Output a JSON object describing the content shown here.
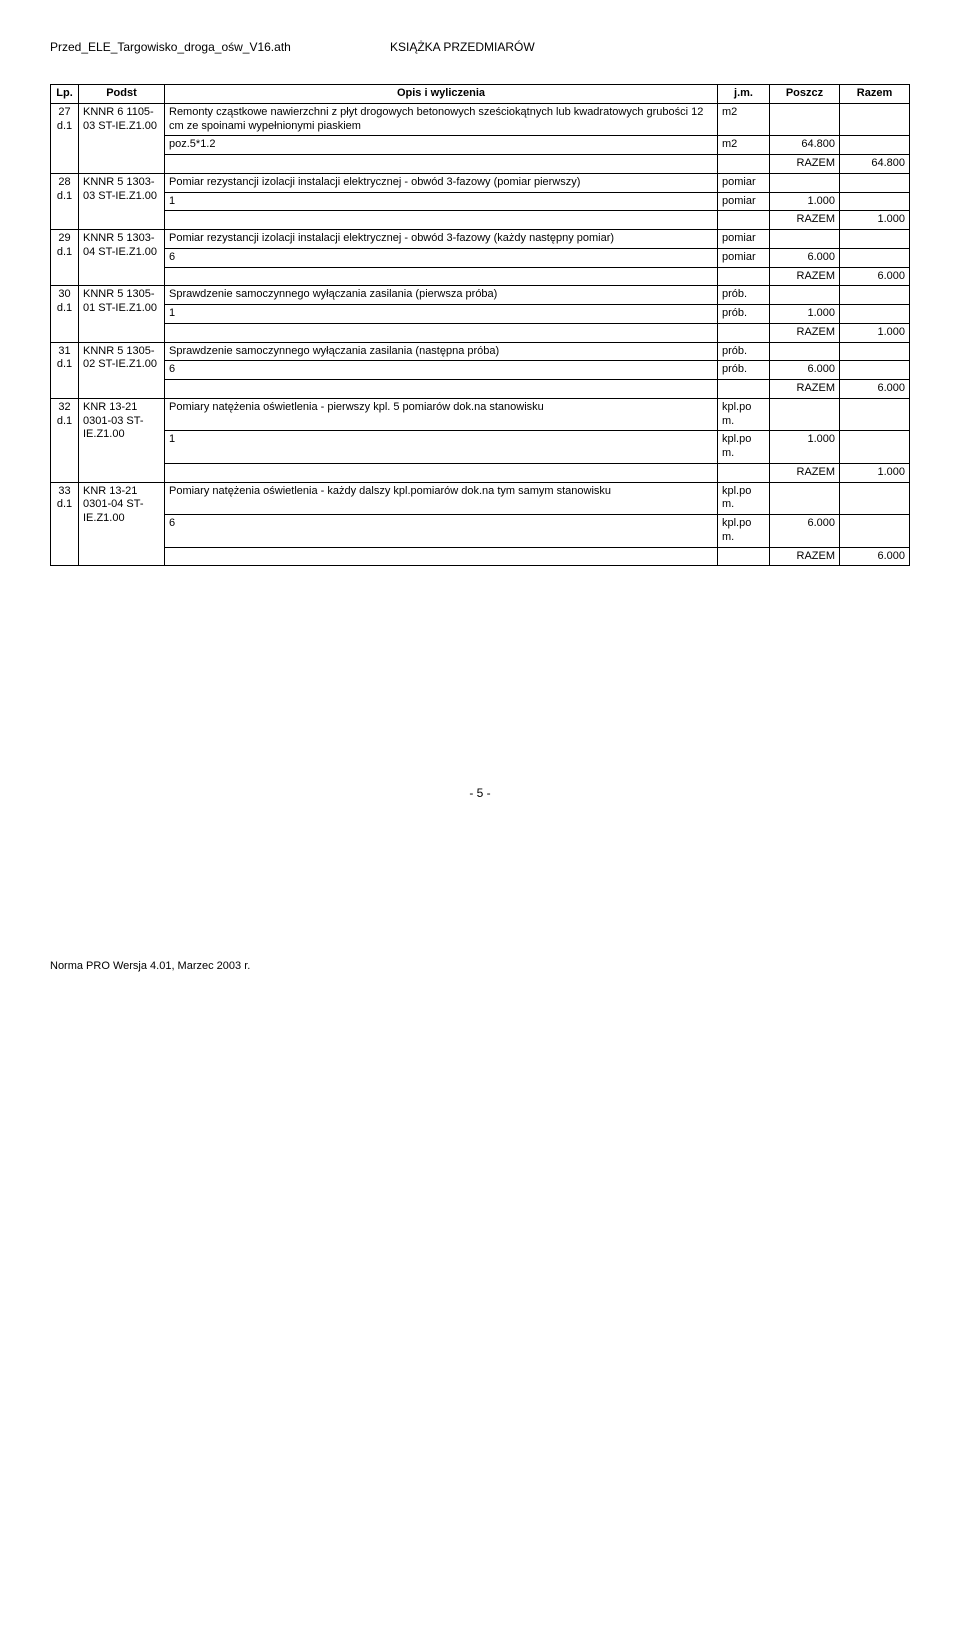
{
  "doc": {
    "filename": "Przed_ELE_Targowisko_droga_ośw_V16.ath",
    "title": "KSIĄŻKA PRZEDMIARÓW"
  },
  "header": {
    "lp": "Lp.",
    "podst": "Podst",
    "opis": "Opis i wyliczenia",
    "jm": "j.m.",
    "poszcz": "Poszcz",
    "razem": "Razem"
  },
  "razem_label": "RAZEM",
  "items": [
    {
      "lp": "27",
      "podst": "KNNR 6 1105-03 ST-IE.Z1.00",
      "opis": "Remonty cząstkowe nawierzchni z płyt drogowych betonowych sześciokątnych lub kwadratowych grubości 12 cm ze spoinami wypełnionymi piaskiem",
      "jm": "m2",
      "calc": "poz.5*1.2",
      "calc_jm": "m2",
      "calc_val": "64.800",
      "razem": "64.800"
    },
    {
      "lp": "28",
      "podst": "KNNR 5 1303-03 ST-IE.Z1.00",
      "opis": "Pomiar rezystancji izolacji instalacji elektrycznej - obwód 3-fazowy (pomiar pierwszy)",
      "jm": "pomiar",
      "calc": "1",
      "calc_jm": "pomiar",
      "calc_val": "1.000",
      "razem": "1.000"
    },
    {
      "lp": "29",
      "podst": "KNNR 5 1303-04 ST-IE.Z1.00",
      "opis": "Pomiar rezystancji izolacji instalacji elektrycznej - obwód 3-fazowy (każdy następny pomiar)",
      "jm": "pomiar",
      "calc": "6",
      "calc_jm": "pomiar",
      "calc_val": "6.000",
      "razem": "6.000"
    },
    {
      "lp": "30",
      "podst": "KNNR 5 1305-01 ST-IE.Z1.00",
      "opis": "Sprawdzenie samoczynnego wyłączania zasilania (pierwsza próba)",
      "jm": "prób.",
      "calc": "1",
      "calc_jm": "prób.",
      "calc_val": "1.000",
      "razem": "1.000"
    },
    {
      "lp": "31",
      "podst": "KNNR 5 1305-02 ST-IE.Z1.00",
      "opis": "Sprawdzenie samoczynnego wyłączania zasilania (następna próba)",
      "jm": "prób.",
      "calc": "6",
      "calc_jm": "prób.",
      "calc_val": "6.000",
      "razem": "6.000"
    },
    {
      "lp": "32",
      "podst": "KNR 13-21 0301-03 ST-IE.Z1.00",
      "opis": "Pomiary natężenia oświetlenia - pierwszy kpl. 5 pomiarów dok.na stanowisku",
      "jm": "kpl.po m.",
      "calc": "1",
      "calc_jm": "kpl.po m.",
      "calc_val": "1.000",
      "razem": "1.000"
    },
    {
      "lp": "33",
      "podst": "KNR 13-21 0301-04 ST-IE.Z1.00",
      "opis": "Pomiary natężenia oświetlenia - każdy dalszy kpl.pomiarów dok.na tym samym stanowisku",
      "jm": "kpl.po m.",
      "calc": "6",
      "calc_jm": "kpl.po m.",
      "calc_val": "6.000",
      "razem": "6.000"
    }
  ],
  "page_number": "- 5 -",
  "footer_note": "Norma PRO Wersja 4.01, Marzec 2003 r."
}
